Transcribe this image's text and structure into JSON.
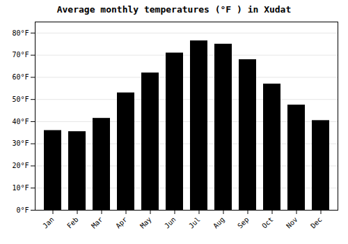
{
  "chart_data": {
    "type": "bar",
    "title": "Average monthly temperatures (°F ) in Xudat",
    "categories": [
      "Jan",
      "Feb",
      "Mar",
      "Apr",
      "May",
      "Jun",
      "Jul",
      "Aug",
      "Sep",
      "Oct",
      "Nov",
      "Dec"
    ],
    "values": [
      36,
      35.5,
      41.5,
      53,
      62,
      71,
      76.5,
      75,
      68,
      57,
      47.5,
      40.5
    ],
    "ylim": [
      0,
      85
    ],
    "yticks": [
      {
        "value": 0,
        "label": "0°F"
      },
      {
        "value": 10,
        "label": "10°F"
      },
      {
        "value": 20,
        "label": "20°F"
      },
      {
        "value": 30,
        "label": "30°F"
      },
      {
        "value": 40,
        "label": "40°F"
      },
      {
        "value": 50,
        "label": "50°F"
      },
      {
        "value": 60,
        "label": "60°F"
      },
      {
        "value": 70,
        "label": "70°F"
      },
      {
        "value": 80,
        "label": "80°F"
      }
    ],
    "grid": true
  }
}
